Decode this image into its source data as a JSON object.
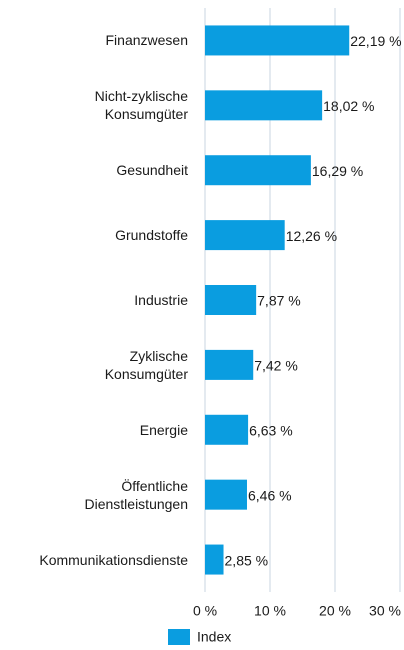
{
  "chart_data": {
    "type": "bar",
    "orientation": "horizontal",
    "categories": [
      "Finanzwesen",
      "Nicht-zyklische\nKonsumgüter",
      "Gesundheit",
      "Grundstoffe",
      "Industrie",
      "Zyklische\nKonsumgüter",
      "Energie",
      "Öffentliche\nDienstleistungen",
      "Kommunikationsdienste"
    ],
    "series": [
      {
        "name": "Index",
        "color": "#0a9de0",
        "values": [
          22.19,
          18.02,
          16.29,
          12.26,
          7.87,
          7.42,
          6.63,
          6.46,
          2.85
        ],
        "value_labels": [
          "22,19 %",
          "18,02 %",
          "16,29 %",
          "12,26 %",
          "7,87 %",
          "7,42 %",
          "6,63 %",
          "6,46 %",
          "2,85 %"
        ]
      }
    ],
    "xlim": [
      0,
      30
    ],
    "xticks": [
      {
        "value": 0,
        "label": "0 %"
      },
      {
        "value": 10,
        "label": "10 %"
      },
      {
        "value": 20,
        "label": "20 %"
      },
      {
        "value": 30,
        "label": "30 %"
      }
    ],
    "grid": true,
    "legend": "bottom"
  }
}
